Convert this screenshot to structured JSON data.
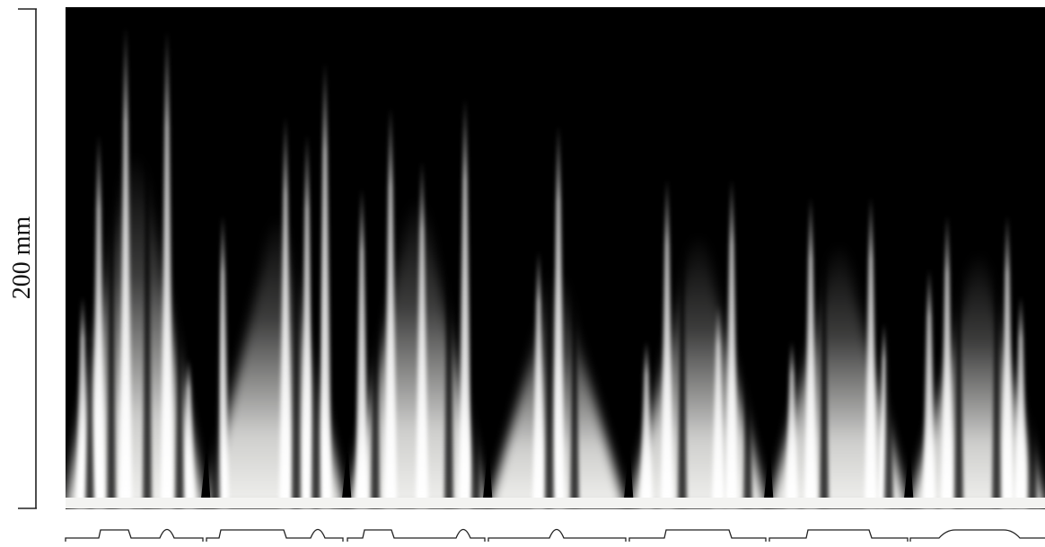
{
  "scale_bar": {
    "label": "200 mm"
  },
  "panels": [
    {
      "id": 1,
      "profile": [
        "step-up",
        "step-down",
        "bump"
      ]
    },
    {
      "id": 2,
      "profile": [
        "step-up",
        "step-down",
        "bump"
      ]
    },
    {
      "id": 3,
      "profile": [
        "step-up",
        "step-down",
        "bump"
      ]
    },
    {
      "id": 4,
      "profile": [
        "bump"
      ]
    },
    {
      "id": 5,
      "profile": [
        "step-up",
        "step-down"
      ]
    },
    {
      "id": 6,
      "profile": [
        "step-up",
        "step-down"
      ]
    },
    {
      "id": 7,
      "profile": [
        "ramp-up",
        "ramp-down"
      ]
    }
  ],
  "colors": {
    "background": "#000000",
    "glow": "#f2f2f0",
    "line": "#222222"
  }
}
